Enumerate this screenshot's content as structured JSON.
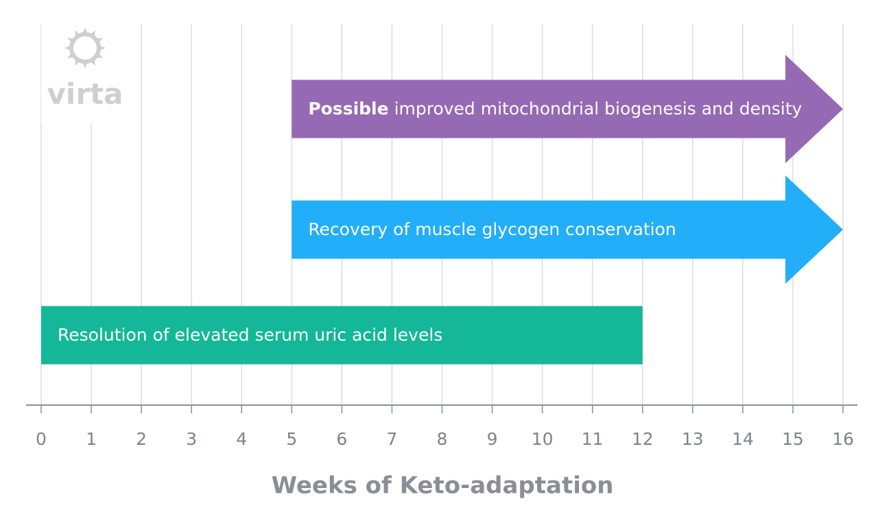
{
  "chart_data": {
    "type": "timeline",
    "logo": "virta",
    "xlabel": "Weeks of Keto-adaptation",
    "xlim": [
      0,
      16
    ],
    "xticks": [
      0,
      1,
      2,
      3,
      4,
      5,
      6,
      7,
      8,
      9,
      10,
      11,
      12,
      13,
      14,
      15,
      16
    ],
    "grid": true,
    "tasks": [
      {
        "emphasis": "Possible",
        "label": "improved mitochondrial biogenesis and density",
        "start": 5,
        "end": 16,
        "color": "#9569b3",
        "arrow": true
      },
      {
        "label": "Recovery of muscle glycogen conservation",
        "start": 5,
        "end": 16,
        "color": "#22aef8",
        "arrow": true
      },
      {
        "label": "Resolution of elevated serum uric acid levels",
        "start": 0,
        "end": 12,
        "color": "#14b898",
        "arrow": false
      }
    ]
  }
}
